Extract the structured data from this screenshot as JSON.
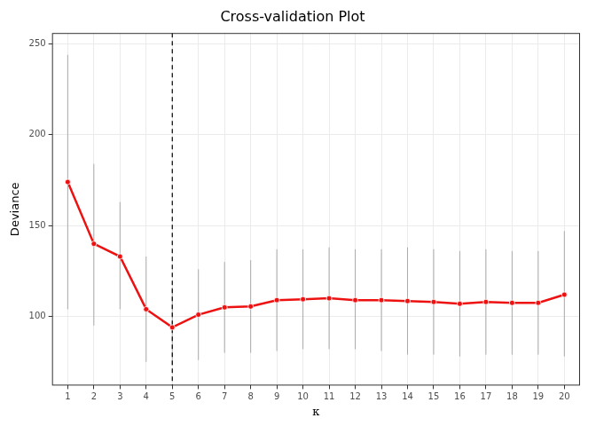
{
  "chart_data": {
    "type": "line",
    "title": "Cross-validation Plot",
    "x_label": "κ",
    "y_label": "Deviance",
    "x": [
      1,
      2,
      3,
      4,
      5,
      6,
      7,
      8,
      9,
      10,
      11,
      12,
      13,
      14,
      15,
      16,
      17,
      18,
      19,
      20
    ],
    "values": [
      174,
      140,
      133,
      104,
      94,
      101,
      105,
      105.5,
      109,
      109.5,
      110,
      109,
      109,
      108.5,
      108,
      107,
      108,
      107.5,
      107.5,
      112
    ],
    "lower": [
      104,
      95,
      104,
      75,
      73,
      76,
      80,
      80,
      81,
      82,
      82,
      82,
      81,
      79,
      79,
      78,
      79,
      79,
      79,
      78
    ],
    "upper": [
      244,
      184,
      163,
      133,
      116,
      126,
      130,
      131,
      137,
      137,
      138,
      137,
      137,
      138,
      137,
      136,
      137,
      136,
      136,
      147
    ],
    "color": "#ee1111",
    "marker": "circle",
    "vline": 5,
    "xlim": [
      0.4,
      20.6
    ],
    "xticks": [
      1,
      2,
      3,
      4,
      5,
      6,
      7,
      8,
      9,
      10,
      11,
      12,
      13,
      14,
      15,
      16,
      17,
      18,
      19,
      20
    ],
    "ylim": [
      62,
      256
    ],
    "yticks": [
      100,
      150,
      200,
      250
    ],
    "grid": true
  }
}
